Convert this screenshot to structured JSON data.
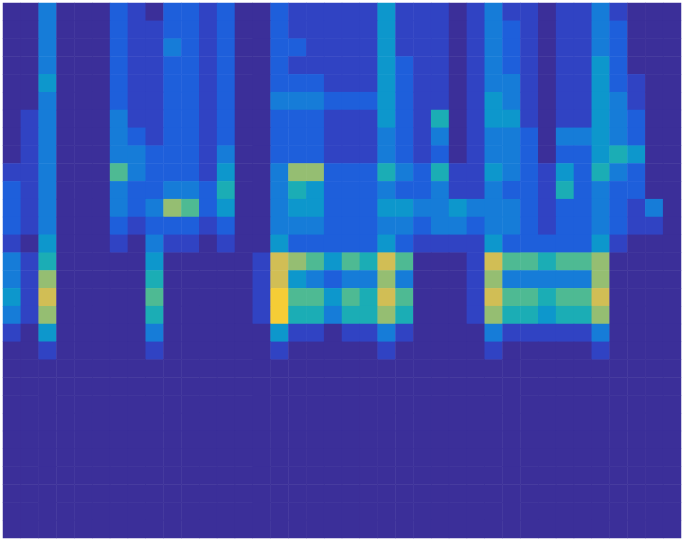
{
  "chart_data": {
    "type": "heatmap",
    "tick_labels": false,
    "zlim": [
      0,
      10
    ],
    "cells": [
      [
        0,
        0,
        3,
        0,
        0,
        0,
        2,
        1,
        0,
        2,
        2,
        1,
        2,
        0,
        0,
        2,
        1,
        1,
        1,
        1,
        1,
        4,
        1,
        1,
        1,
        0,
        1,
        3,
        1,
        1,
        0,
        1,
        1,
        3,
        1,
        0,
        0,
        0
      ],
      [
        0,
        0,
        3,
        0,
        0,
        0,
        2,
        1,
        1,
        2,
        2,
        1,
        2,
        0,
        0,
        2,
        1,
        1,
        1,
        1,
        1,
        4,
        1,
        1,
        1,
        0,
        1,
        3,
        2,
        1,
        0,
        1,
        1,
        3,
        2,
        0,
        0,
        0
      ],
      [
        0,
        0,
        3,
        0,
        0,
        0,
        2,
        1,
        1,
        3,
        2,
        1,
        2,
        0,
        0,
        2,
        2,
        1,
        1,
        1,
        1,
        4,
        1,
        1,
        1,
        0,
        1,
        3,
        2,
        1,
        0,
        1,
        1,
        3,
        2,
        0,
        0,
        0
      ],
      [
        0,
        0,
        3,
        0,
        0,
        0,
        2,
        1,
        1,
        2,
        2,
        1,
        2,
        0,
        0,
        2,
        1,
        1,
        1,
        1,
        1,
        4,
        2,
        1,
        1,
        0,
        1,
        3,
        2,
        1,
        0,
        1,
        1,
        4,
        2,
        0,
        0,
        0
      ],
      [
        0,
        0,
        4,
        0,
        0,
        0,
        2,
        1,
        1,
        2,
        2,
        1,
        2,
        0,
        0,
        2,
        2,
        2,
        1,
        1,
        1,
        4,
        2,
        1,
        1,
        0,
        1,
        3,
        3,
        1,
        0,
        1,
        1,
        4,
        2,
        1,
        0,
        0
      ],
      [
        0,
        0,
        3,
        0,
        0,
        0,
        2,
        1,
        1,
        2,
        2,
        1,
        2,
        0,
        0,
        3,
        3,
        3,
        2,
        2,
        2,
        4,
        2,
        1,
        1,
        0,
        1,
        4,
        3,
        1,
        0,
        1,
        1,
        4,
        3,
        1,
        0,
        0
      ],
      [
        0,
        1,
        3,
        0,
        0,
        0,
        3,
        1,
        1,
        2,
        2,
        1,
        2,
        0,
        0,
        2,
        2,
        2,
        1,
        1,
        1,
        4,
        2,
        1,
        5,
        0,
        1,
        4,
        4,
        1,
        0,
        1,
        1,
        4,
        3,
        2,
        0,
        0
      ],
      [
        0,
        1,
        3,
        0,
        0,
        0,
        3,
        2,
        1,
        2,
        2,
        1,
        2,
        0,
        0,
        2,
        2,
        2,
        1,
        1,
        1,
        3,
        2,
        1,
        3,
        0,
        1,
        3,
        3,
        2,
        0,
        3,
        3,
        4,
        3,
        2,
        0,
        0
      ],
      [
        0,
        1,
        3,
        0,
        0,
        0,
        3,
        3,
        2,
        2,
        2,
        1,
        3,
        0,
        0,
        2,
        2,
        2,
        1,
        1,
        1,
        3,
        2,
        1,
        2,
        0,
        1,
        3,
        3,
        2,
        0,
        2,
        2,
        4,
        5,
        4,
        0,
        0
      ],
      [
        1,
        1,
        3,
        0,
        0,
        0,
        6,
        3,
        2,
        2,
        2,
        1,
        4,
        0,
        0,
        3,
        7,
        7,
        2,
        2,
        2,
        5,
        3,
        2,
        5,
        1,
        1,
        4,
        3,
        2,
        1,
        4,
        2,
        5,
        3,
        2,
        0,
        0
      ],
      [
        2,
        1,
        3,
        0,
        0,
        0,
        3,
        2,
        2,
        3,
        3,
        2,
        5,
        0,
        0,
        3,
        5,
        4,
        2,
        2,
        2,
        3,
        2,
        2,
        3,
        1,
        1,
        3,
        2,
        2,
        1,
        5,
        2,
        3,
        2,
        2,
        0,
        0
      ],
      [
        2,
        1,
        3,
        0,
        0,
        0,
        3,
        2,
        3,
        7,
        6,
        2,
        4,
        0,
        0,
        3,
        4,
        4,
        2,
        2,
        2,
        4,
        4,
        3,
        3,
        4,
        3,
        3,
        3,
        2,
        1,
        2,
        2,
        3,
        2,
        1,
        3,
        0
      ],
      [
        2,
        1,
        3,
        0,
        0,
        0,
        2,
        1,
        2,
        2,
        2,
        1,
        2,
        0,
        0,
        3,
        3,
        3,
        2,
        2,
        2,
        3,
        3,
        2,
        3,
        3,
        2,
        3,
        3,
        2,
        1,
        2,
        2,
        3,
        2,
        1,
        1,
        0
      ],
      [
        1,
        0,
        4,
        0,
        0,
        0,
        1,
        0,
        3,
        1,
        1,
        0,
        1,
        0,
        0,
        4,
        2,
        2,
        2,
        2,
        2,
        4,
        2,
        1,
        1,
        1,
        1,
        4,
        2,
        2,
        2,
        2,
        2,
        4,
        1,
        0,
        0,
        0
      ],
      [
        3,
        1,
        5,
        0,
        0,
        0,
        0,
        0,
        4,
        0,
        0,
        0,
        0,
        0,
        1,
        8,
        7,
        6,
        4,
        6,
        5,
        8,
        6,
        0,
        0,
        0,
        1,
        8,
        6,
        6,
        5,
        6,
        6,
        7,
        0,
        0,
        0,
        0
      ],
      [
        3,
        1,
        7,
        0,
        0,
        0,
        0,
        0,
        5,
        0,
        0,
        0,
        0,
        0,
        1,
        8,
        4,
        3,
        2,
        3,
        3,
        7,
        3,
        0,
        0,
        0,
        1,
        7,
        3,
        3,
        3,
        3,
        3,
        7,
        0,
        0,
        0,
        0
      ],
      [
        4,
        1,
        8,
        0,
        0,
        0,
        0,
        0,
        6,
        0,
        0,
        0,
        0,
        0,
        1,
        9,
        6,
        6,
        4,
        6,
        5,
        8,
        6,
        0,
        0,
        0,
        1,
        8,
        6,
        6,
        5,
        6,
        6,
        8,
        0,
        0,
        0,
        0
      ],
      [
        3,
        1,
        7,
        0,
        0,
        0,
        0,
        0,
        5,
        0,
        0,
        0,
        0,
        0,
        1,
        9,
        5,
        5,
        3,
        5,
        5,
        7,
        5,
        0,
        0,
        0,
        1,
        7,
        5,
        5,
        4,
        5,
        5,
        7,
        0,
        0,
        0,
        0
      ],
      [
        1,
        0,
        4,
        0,
        0,
        0,
        0,
        0,
        3,
        0,
        0,
        0,
        0,
        0,
        0,
        4,
        1,
        1,
        0,
        1,
        1,
        3,
        1,
        0,
        0,
        0,
        0,
        3,
        1,
        1,
        1,
        1,
        1,
        3,
        0,
        0,
        0,
        0
      ],
      [
        0,
        0,
        1,
        0,
        0,
        0,
        0,
        0,
        1,
        0,
        0,
        0,
        0,
        0,
        0,
        1,
        0,
        0,
        0,
        0,
        0,
        1,
        0,
        0,
        0,
        0,
        0,
        1,
        0,
        0,
        0,
        0,
        0,
        1,
        0,
        0,
        0,
        0
      ],
      [
        0,
        0,
        0,
        0,
        0,
        0,
        0,
        0,
        0,
        0,
        0,
        0,
        0,
        0,
        0,
        0,
        0,
        0,
        0,
        0,
        0,
        0,
        0,
        0,
        0,
        0,
        0,
        0,
        0,
        0,
        0,
        0,
        0,
        0,
        0,
        0,
        0,
        0
      ],
      [
        0,
        0,
        0,
        0,
        0,
        0,
        0,
        0,
        0,
        0,
        0,
        0,
        0,
        0,
        0,
        0,
        0,
        0,
        0,
        0,
        0,
        0,
        0,
        0,
        0,
        0,
        0,
        0,
        0,
        0,
        0,
        0,
        0,
        0,
        0,
        0,
        0,
        0
      ],
      [
        0,
        0,
        0,
        0,
        0,
        0,
        0,
        0,
        0,
        0,
        0,
        0,
        0,
        0,
        0,
        0,
        0,
        0,
        0,
        0,
        0,
        0,
        0,
        0,
        0,
        0,
        0,
        0,
        0,
        0,
        0,
        0,
        0,
        0,
        0,
        0,
        0,
        0
      ],
      [
        0,
        0,
        0,
        0,
        0,
        0,
        0,
        0,
        0,
        0,
        0,
        0,
        0,
        0,
        0,
        0,
        0,
        0,
        0,
        0,
        0,
        0,
        0,
        0,
        0,
        0,
        0,
        0,
        0,
        0,
        0,
        0,
        0,
        0,
        0,
        0,
        0,
        0
      ],
      [
        0,
        0,
        0,
        0,
        0,
        0,
        0,
        0,
        0,
        0,
        0,
        0,
        0,
        0,
        0,
        0,
        0,
        0,
        0,
        0,
        0,
        0,
        0,
        0,
        0,
        0,
        0,
        0,
        0,
        0,
        0,
        0,
        0,
        0,
        0,
        0,
        0,
        0
      ],
      [
        0,
        0,
        0,
        0,
        0,
        0,
        0,
        0,
        0,
        0,
        0,
        0,
        0,
        0,
        0,
        0,
        0,
        0,
        0,
        0,
        0,
        0,
        0,
        0,
        0,
        0,
        0,
        0,
        0,
        0,
        0,
        0,
        0,
        0,
        0,
        0,
        0,
        0
      ],
      [
        0,
        0,
        0,
        0,
        0,
        0,
        0,
        0,
        0,
        0,
        0,
        0,
        0,
        0,
        0,
        0,
        0,
        0,
        0,
        0,
        0,
        0,
        0,
        0,
        0,
        0,
        0,
        0,
        0,
        0,
        0,
        0,
        0,
        0,
        0,
        0,
        0,
        0
      ],
      [
        0,
        0,
        0,
        0,
        0,
        0,
        0,
        0,
        0,
        0,
        0,
        0,
        0,
        0,
        0,
        0,
        0,
        0,
        0,
        0,
        0,
        0,
        0,
        0,
        0,
        0,
        0,
        0,
        0,
        0,
        0,
        0,
        0,
        0,
        0,
        0,
        0,
        0
      ],
      [
        0,
        0,
        0,
        0,
        0,
        0,
        0,
        0,
        0,
        0,
        0,
        0,
        0,
        0,
        0,
        0,
        0,
        0,
        0,
        0,
        0,
        0,
        0,
        0,
        0,
        0,
        0,
        0,
        0,
        0,
        0,
        0,
        0,
        0,
        0,
        0,
        0,
        0
      ],
      [
        0,
        0,
        0,
        0,
        0,
        0,
        0,
        0,
        0,
        0,
        0,
        0,
        0,
        0,
        0,
        0,
        0,
        0,
        0,
        0,
        0,
        0,
        0,
        0,
        0,
        0,
        0,
        0,
        0,
        0,
        0,
        0,
        0,
        0,
        0,
        0,
        0,
        0
      ]
    ]
  }
}
